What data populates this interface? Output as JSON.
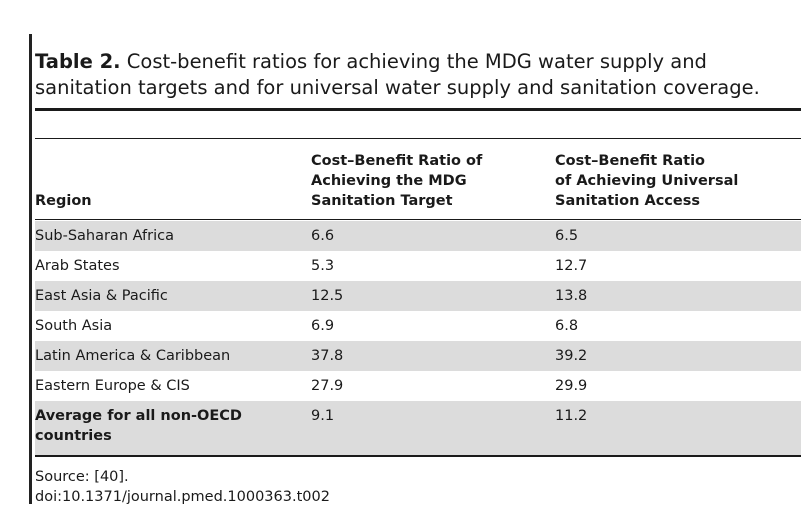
{
  "caption": {
    "label": "Table 2.",
    "text": "Cost-benefit ratios for achieving the MDG water supply and sanitation targets and for universal water supply and sanitation coverage."
  },
  "table": {
    "headers": {
      "region": "Region",
      "mdg_line1": "Cost–Benefit Ratio of",
      "mdg_line2": "Achieving the MDG",
      "mdg_line3": "Sanitation Target",
      "universal_line1": "Cost–Benefit Ratio",
      "universal_line2": "of Achieving Universal",
      "universal_line3": "Sanitation Access"
    },
    "rows": [
      {
        "region": "Sub-Saharan Africa",
        "mdg": "6.6",
        "universal": "6.5"
      },
      {
        "region": "Arab States",
        "mdg": "5.3",
        "universal": "12.7"
      },
      {
        "region": "East Asia & Pacific",
        "mdg": "12.5",
        "universal": "13.8"
      },
      {
        "region": "South Asia",
        "mdg": "6.9",
        "universal": "6.8"
      },
      {
        "region": "Latin America & Caribbean",
        "mdg": "37.8",
        "universal": "39.2"
      },
      {
        "region": "Eastern Europe & CIS",
        "mdg": "27.9",
        "universal": "29.9"
      },
      {
        "region": "Average for all non-OECD countries",
        "mdg": "9.1",
        "universal": "11.2"
      }
    ]
  },
  "footnotes": {
    "source": "Source: [40].",
    "doi": "doi:10.1371/journal.pmed.1000363.t002"
  },
  "colors": {
    "row_shade": "#dcdcdc",
    "rule": "#1a1a1a"
  }
}
